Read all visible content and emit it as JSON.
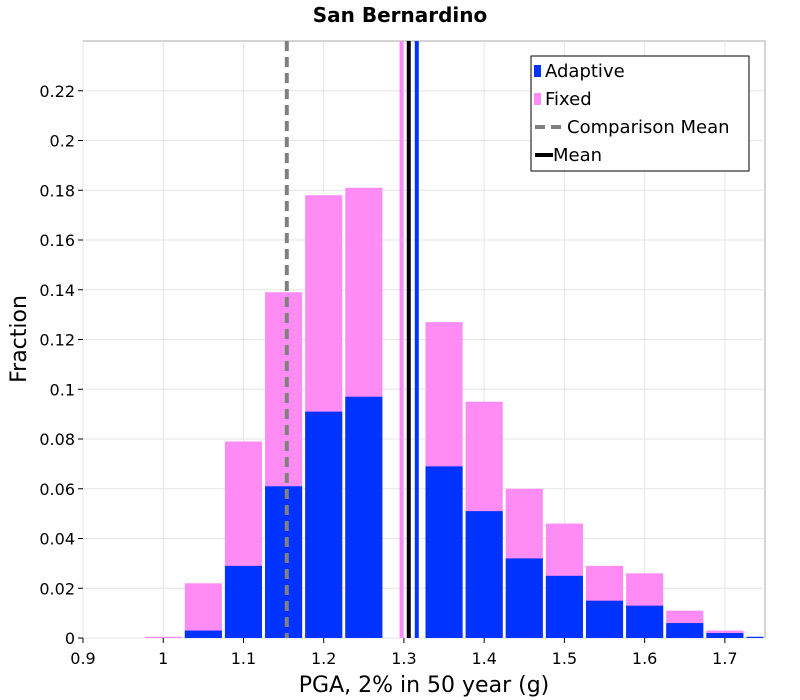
{
  "chart_data": {
    "type": "bar",
    "title": "San Bernardino",
    "xlabel": "PGA, 2% in 50 year (g)",
    "ylabel": "Fraction",
    "xlim": [
      0.9,
      1.75
    ],
    "ylim": [
      0,
      0.24
    ],
    "x_ticks": [
      "0.9",
      "1",
      "1.1",
      "1.2",
      "1.3",
      "1.4",
      "1.5",
      "1.6",
      "1.7"
    ],
    "y_ticks": [
      "0",
      "0.02",
      "0.04",
      "0.06",
      "0.08",
      "0.1",
      "0.12",
      "0.14",
      "0.16",
      "0.18",
      "0.2",
      "0.22"
    ],
    "grid": true,
    "legend_position": "top-right",
    "bin_width": 0.05,
    "bin_centers": [
      1.0,
      1.05,
      1.1,
      1.15,
      1.2,
      1.25,
      1.3,
      1.35,
      1.4,
      1.45,
      1.5,
      1.55,
      1.6,
      1.65,
      1.7,
      1.75
    ],
    "series": [
      {
        "name": "Fixed",
        "color": "#ff8cf5",
        "values": [
          0.0005,
          0.022,
          0.079,
          0.139,
          0.178,
          0.181,
          0.0,
          0.127,
          0.095,
          0.06,
          0.046,
          0.029,
          0.026,
          0.011,
          0.003,
          0.0
        ]
      },
      {
        "name": "Adaptive",
        "color": "#0033ff",
        "values": [
          0.0,
          0.003,
          0.029,
          0.061,
          0.091,
          0.097,
          0.0,
          0.069,
          0.051,
          0.032,
          0.025,
          0.015,
          0.013,
          0.006,
          0.002,
          0.0005
        ]
      }
    ],
    "reference_lines": [
      {
        "name": "Comparison Mean",
        "x": 1.154,
        "color": "#808080",
        "style": "dashed"
      },
      {
        "name": "Mean",
        "x": 1.306,
        "color": "#000000",
        "style": "solid"
      },
      {
        "name": "Fixed mean",
        "x": 1.297,
        "color": "#ff8cf5",
        "style": "solid"
      },
      {
        "name": "Adaptive mean",
        "x": 1.316,
        "color": "#0033ff",
        "style": "solid"
      }
    ],
    "legend": [
      {
        "label": "Adaptive",
        "kind": "box",
        "color": "#0033ff"
      },
      {
        "label": "Fixed",
        "kind": "box",
        "color": "#ff8cf5"
      },
      {
        "label": "Comparison Mean",
        "kind": "dash",
        "color": "#808080"
      },
      {
        "label": "Mean",
        "kind": "line",
        "color": "#000000"
      }
    ]
  }
}
